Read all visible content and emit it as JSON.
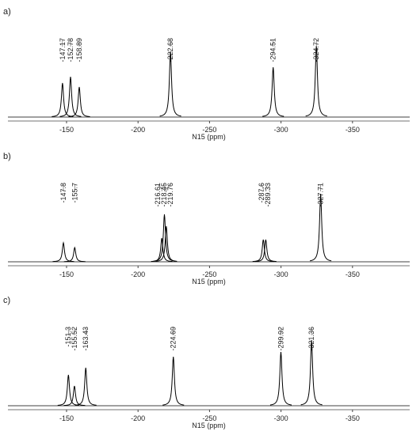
{
  "chart_data": [
    {
      "type": "line",
      "label": "a)",
      "xlabel": "N15 (ppm)",
      "xlim": [
        -109,
        -390
      ],
      "xticks": [
        -150,
        -200,
        -250,
        -300,
        -350
      ],
      "ylim": [
        0,
        100
      ],
      "color": "#000000",
      "x": [
        -147.17,
        -152.78,
        -158.89,
        -222.68,
        -294.51,
        -324.72
      ],
      "values": [
        43,
        51,
        38,
        83,
        63,
        90
      ]
    },
    {
      "type": "line",
      "label": "b)",
      "xlabel": "N15 (ppm)",
      "xlim": [
        -109,
        -390
      ],
      "xticks": [
        -150,
        -200,
        -250,
        -300,
        -350
      ],
      "ylim": [
        0,
        100
      ],
      "color": "#000000",
      "x": [
        -147.8,
        -155.7,
        -216.61,
        -218.45,
        -219.76,
        -287.6,
        -289.33,
        -327.71
      ],
      "values": [
        24,
        18,
        30,
        60,
        45,
        28,
        28,
        86
      ]
    },
    {
      "type": "line",
      "label": "c)",
      "xlabel": "N15 (ppm)",
      "xlim": [
        -109,
        -390
      ],
      "xticks": [
        -150,
        -200,
        -250,
        -300,
        -350
      ],
      "ylim": [
        0,
        100
      ],
      "color": "#000000",
      "x": [
        -151.3,
        -155.52,
        -163.43,
        -224.69,
        -299.92,
        -321.36
      ],
      "values": [
        39,
        25,
        48,
        62,
        68,
        83
      ]
    }
  ]
}
